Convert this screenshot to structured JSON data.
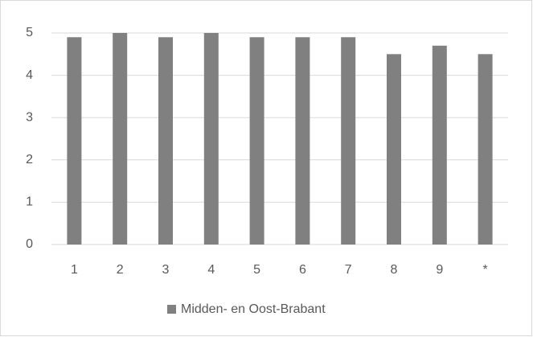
{
  "chart_data": {
    "type": "bar",
    "categories": [
      "1",
      "2",
      "3",
      "4",
      "5",
      "6",
      "7",
      "8",
      "9",
      "*"
    ],
    "series": [
      {
        "name": "Midden- en Oost-Brabant",
        "color": "#808080",
        "values": [
          4.9,
          5,
          4.9,
          5,
          4.9,
          4.9,
          4.9,
          4.5,
          4.7,
          4.5
        ]
      }
    ],
    "ylim": [
      0,
      5
    ],
    "yticks": [
      0,
      1,
      2,
      3,
      4,
      5
    ],
    "grid": true,
    "legend": "bottom"
  }
}
